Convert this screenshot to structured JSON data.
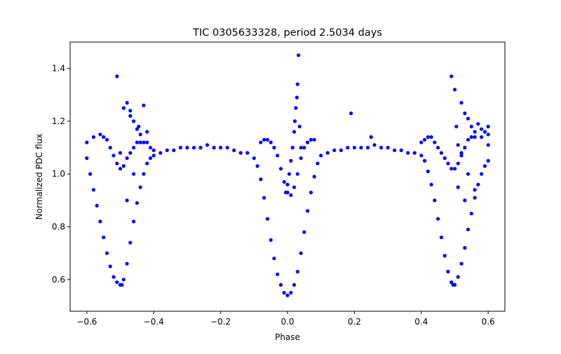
{
  "chart_data": {
    "type": "scatter",
    "title": "TIC 0305633328, period 2.5034 days",
    "xlabel": "Phase",
    "ylabel": "Normalized PDC flux",
    "xlim": [
      -0.65,
      0.65
    ],
    "ylim": [
      0.48,
      1.5
    ],
    "xticks": [
      -0.6,
      -0.4,
      -0.2,
      0.0,
      0.2,
      0.4,
      0.6
    ],
    "xtick_labels": [
      "−0.6",
      "−0.4",
      "−0.2",
      "0.0",
      "0.2",
      "0.4",
      "0.6"
    ],
    "yticks": [
      0.6,
      0.8,
      1.0,
      1.2,
      1.4
    ],
    "ytick_labels": [
      "0.6",
      "0.8",
      "1.0",
      "1.2",
      "1.4"
    ],
    "grid": false,
    "legend": "none",
    "marker_color": "#0000ff",
    "series": [
      {
        "x": [
          -0.6,
          -0.59,
          -0.58,
          -0.57,
          -0.56,
          -0.55,
          -0.54,
          -0.53,
          -0.52,
          -0.51,
          -0.5,
          -0.495,
          -0.49,
          -0.48,
          -0.47,
          -0.46,
          -0.45,
          -0.44,
          -0.43,
          -0.42,
          -0.41,
          -0.4,
          -0.38,
          -0.36,
          -0.34,
          -0.32,
          -0.3,
          -0.28,
          -0.26,
          -0.24,
          -0.22,
          -0.2,
          -0.18,
          -0.16,
          -0.14,
          -0.12,
          -0.1,
          -0.09,
          -0.08,
          -0.07,
          -0.06,
          -0.05,
          -0.04,
          -0.03,
          -0.02,
          -0.01,
          0.0,
          0.01,
          0.02,
          0.03,
          0.04,
          0.05,
          0.06,
          0.07,
          0.08,
          0.09,
          0.1,
          0.12,
          0.14,
          0.16,
          0.18,
          0.2,
          0.22,
          0.24,
          0.26,
          0.28,
          0.3,
          0.32,
          0.34,
          0.36,
          0.38,
          0.4,
          0.41,
          0.42,
          0.43,
          0.44,
          0.45,
          0.46,
          0.47,
          0.48,
          0.49,
          0.495,
          0.5,
          0.51,
          0.52,
          0.53,
          0.54,
          0.55,
          0.56,
          0.57,
          0.58,
          0.59,
          0.6
        ],
        "y": [
          1.06,
          1.0,
          0.94,
          0.88,
          0.82,
          0.76,
          0.7,
          0.65,
          0.61,
          0.59,
          0.58,
          0.58,
          0.6,
          0.66,
          0.74,
          0.82,
          0.89,
          0.95,
          1.0,
          1.04,
          1.06,
          1.07,
          1.08,
          1.09,
          1.09,
          1.1,
          1.1,
          1.1,
          1.1,
          1.11,
          1.1,
          1.1,
          1.1,
          1.09,
          1.08,
          1.08,
          1.06,
          1.03,
          0.98,
          0.91,
          0.83,
          0.75,
          0.68,
          0.62,
          0.58,
          0.55,
          0.54,
          0.55,
          0.58,
          0.63,
          0.7,
          0.78,
          0.86,
          0.93,
          0.99,
          1.04,
          1.07,
          1.08,
          1.09,
          1.09,
          1.1,
          1.1,
          1.1,
          1.1,
          1.11,
          1.1,
          1.1,
          1.09,
          1.09,
          1.08,
          1.08,
          1.07,
          1.05,
          1.01,
          0.96,
          0.9,
          0.83,
          0.76,
          0.69,
          0.63,
          0.59,
          0.58,
          0.58,
          0.61,
          0.66,
          0.72,
          0.79,
          0.85,
          0.91,
          0.96,
          1.0,
          1.03,
          1.05
        ]
      },
      {
        "x": [
          -0.6,
          -0.58,
          -0.56,
          -0.55,
          -0.54,
          -0.53,
          -0.52,
          -0.51,
          -0.5,
          -0.49,
          -0.48,
          -0.47,
          -0.46,
          -0.45,
          -0.44,
          -0.43,
          -0.42,
          -0.41,
          -0.4,
          -0.08,
          -0.07,
          -0.06,
          -0.05,
          -0.04,
          -0.03,
          -0.02,
          -0.01,
          0.0,
          0.01,
          0.02,
          0.03,
          0.04,
          0.05,
          0.06,
          0.07,
          0.08,
          0.4,
          0.41,
          0.42,
          0.43,
          0.44,
          0.45,
          0.46,
          0.47,
          0.48,
          0.49,
          0.5,
          0.51,
          0.52,
          0.53,
          0.54,
          0.55,
          0.56,
          0.58,
          0.6
        ],
        "y": [
          1.12,
          1.14,
          1.15,
          1.14,
          1.13,
          1.1,
          1.07,
          1.04,
          1.02,
          1.03,
          1.06,
          1.08,
          1.1,
          1.12,
          1.12,
          1.12,
          1.12,
          1.1,
          1.09,
          1.12,
          1.13,
          1.13,
          1.12,
          1.1,
          1.07,
          1.02,
          0.97,
          0.93,
          0.92,
          0.95,
          1.0,
          1.06,
          1.1,
          1.12,
          1.13,
          1.13,
          1.12,
          1.13,
          1.14,
          1.14,
          1.12,
          1.1,
          1.08,
          1.06,
          1.04,
          1.02,
          1.02,
          1.04,
          1.07,
          1.1,
          1.13,
          1.14,
          1.14,
          1.14,
          1.15
        ]
      },
      {
        "x": [
          -0.51,
          -0.48,
          -0.47,
          -0.46,
          -0.445,
          -0.43,
          -0.42,
          -0.47,
          -0.45,
          -0.49,
          -0.44,
          -0.5,
          -0.46,
          -0.48,
          -0.005,
          0.0,
          0.005,
          0.01,
          0.015,
          0.02,
          0.022,
          0.025,
          0.028,
          0.03,
          0.033,
          0.036,
          0.04,
          0.19,
          0.25,
          0.49,
          0.5,
          0.505,
          0.51,
          0.52,
          0.53,
          0.54,
          0.55,
          0.56,
          0.57,
          0.58,
          0.59,
          0.6,
          0.6,
          0.52,
          0.54,
          0.56,
          0.51,
          0.53
        ],
        "y": [
          1.37,
          1.27,
          1.24,
          1.2,
          1.18,
          1.26,
          1.16,
          1.22,
          1.17,
          1.25,
          1.15,
          1.08,
          1.0,
          0.9,
          0.93,
          0.96,
          1.0,
          1.05,
          1.1,
          1.16,
          1.2,
          1.25,
          1.29,
          1.34,
          1.45,
          1.18,
          1.1,
          1.23,
          1.14,
          1.37,
          1.32,
          1.18,
          1.11,
          1.27,
          1.23,
          1.21,
          1.18,
          1.16,
          1.19,
          1.17,
          1.16,
          1.18,
          1.11,
          1.08,
          1.0,
          0.94,
          0.95,
          0.9
        ]
      }
    ]
  }
}
